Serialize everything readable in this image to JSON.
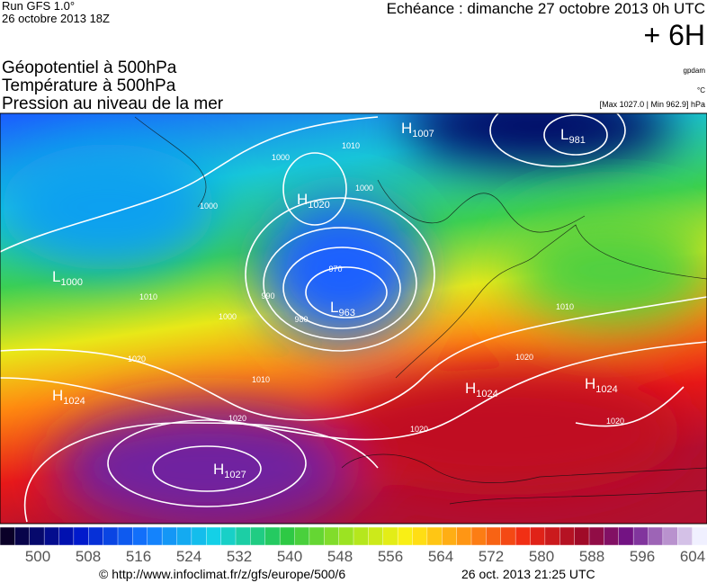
{
  "header": {
    "model": "Run GFS 1.0°",
    "run": "26 octobre 2013 18Z",
    "valid": "Echéance : dimanche 27 octobre 2013 0h UTC",
    "lead": "+ 6H"
  },
  "fields": [
    "Géopotentiel à 500hPa",
    "Température à 500hPa",
    "Pression au niveau de la mer"
  ],
  "units": [
    "gpdam",
    "°C",
    "[Max 1027.0 | Min 962.9] hPa"
  ],
  "centers": [
    {
      "letter": "H",
      "value": 1007
    },
    {
      "letter": "L",
      "value": 981
    },
    {
      "letter": "H",
      "value": 1020
    },
    {
      "letter": "L",
      "value": 1000
    },
    {
      "letter": "L",
      "value": 963
    },
    {
      "letter": "H",
      "value": 1024
    },
    {
      "letter": "H",
      "value": 1024
    },
    {
      "letter": "H",
      "value": 1024
    },
    {
      "letter": "H",
      "value": 1027
    }
  ],
  "isobar_labels": [
    1000,
    1010,
    1000,
    1000,
    970,
    990,
    980,
    1000,
    1010,
    1020,
    1010,
    1020,
    1020,
    1020,
    1010,
    1020
  ],
  "colorbar_ticks": [
    500,
    508,
    516,
    524,
    532,
    540,
    548,
    556,
    564,
    572,
    580,
    588,
    596,
    604
  ],
  "footer": {
    "source": "© http://www.infoclimat.fr/z/gfs/europe/500/6",
    "time": "26 oct. 2013 21:25 UTC"
  }
}
